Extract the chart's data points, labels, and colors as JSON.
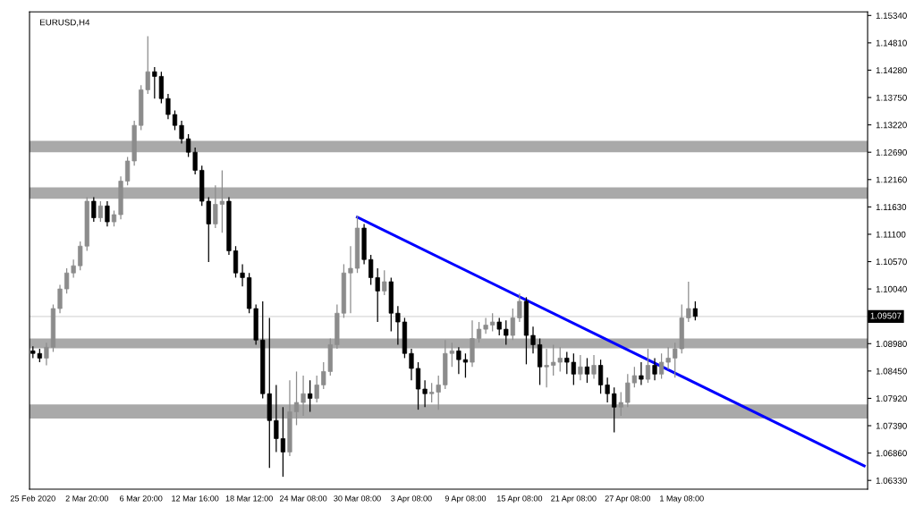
{
  "chart_data": {
    "type": "candlestick",
    "title": "EURUSD,H4",
    "categories": [
      "25 Feb 2020",
      null,
      null,
      null,
      null,
      null,
      null,
      null,
      "2 Mar 20:00",
      null,
      null,
      null,
      null,
      null,
      null,
      null,
      "6 Mar 20:00",
      null,
      null,
      null,
      null,
      null,
      null,
      null,
      "12 Mar 16:00",
      null,
      null,
      null,
      null,
      null,
      null,
      null,
      "18 Mar 12:00",
      null,
      null,
      null,
      null,
      null,
      null,
      null,
      "24 Mar 08:00",
      null,
      null,
      null,
      null,
      null,
      null,
      null,
      "30 Mar 08:00",
      null,
      null,
      null,
      null,
      null,
      null,
      null,
      "3 Apr 08:00",
      null,
      null,
      null,
      null,
      null,
      null,
      null,
      "9 Apr 08:00",
      null,
      null,
      null,
      null,
      null,
      null,
      null,
      "15 Apr 08:00",
      null,
      null,
      null,
      null,
      null,
      null,
      null,
      "21 Apr 08:00",
      null,
      null,
      null,
      null,
      null,
      null,
      null,
      "27 Apr 08:00",
      null,
      null,
      null,
      null,
      null,
      null,
      null,
      "1 May 08:00",
      null,
      null,
      null,
      null,
      null,
      null,
      null,
      null,
      null,
      null,
      null,
      null,
      null,
      null,
      null,
      null,
      null,
      null,
      null,
      null,
      null,
      null,
      null,
      null,
      null,
      null,
      null
    ],
    "ohlc": [
      [
        1.0884,
        1.0893,
        1.087,
        1.0879
      ],
      [
        1.0879,
        1.0888,
        1.0862,
        1.087
      ],
      [
        1.087,
        1.09,
        1.0856,
        1.0891
      ],
      [
        1.0891,
        1.0974,
        1.0882,
        1.0966
      ],
      [
        1.0966,
        1.1012,
        1.0957,
        1.1004
      ],
      [
        1.1004,
        1.1044,
        1.0995,
        1.1035
      ],
      [
        1.1035,
        1.1061,
        1.1026,
        1.1049
      ],
      [
        1.1049,
        1.1096,
        1.104,
        1.1087
      ],
      [
        1.1087,
        1.1182,
        1.1078,
        1.1174
      ],
      [
        1.1174,
        1.1182,
        1.1134,
        1.1142
      ],
      [
        1.1142,
        1.1174,
        1.1134,
        1.1165
      ],
      [
        1.1165,
        1.1174,
        1.1125,
        1.1134
      ],
      [
        1.1134,
        1.1156,
        1.1125,
        1.1148
      ],
      [
        1.1148,
        1.1222,
        1.1139,
        1.1213
      ],
      [
        1.1213,
        1.126,
        1.1205,
        1.1252
      ],
      [
        1.1252,
        1.133,
        1.1243,
        1.1321
      ],
      [
        1.1321,
        1.1399,
        1.1312,
        1.139
      ],
      [
        1.139,
        1.1494,
        1.1382,
        1.1425
      ],
      [
        1.1425,
        1.1434,
        1.1373,
        1.1416
      ],
      [
        1.1416,
        1.1425,
        1.1364,
        1.1373
      ],
      [
        1.1373,
        1.1382,
        1.1333,
        1.1342
      ],
      [
        1.1342,
        1.135,
        1.1312,
        1.1321
      ],
      [
        1.1321,
        1.133,
        1.1286,
        1.1295
      ],
      [
        1.1295,
        1.1304,
        1.126,
        1.1269
      ],
      [
        1.1269,
        1.1278,
        1.1226,
        1.1234
      ],
      [
        1.1234,
        1.1243,
        1.1165,
        1.1174
      ],
      [
        1.1174,
        1.1182,
        1.1056,
        1.113
      ],
      [
        1.113,
        1.1205,
        1.1122,
        1.1168
      ],
      [
        1.1168,
        1.1234,
        1.1113,
        1.1174
      ],
      [
        1.1174,
        1.1182,
        1.107,
        1.1078
      ],
      [
        1.1078,
        1.1087,
        1.1026,
        1.1035
      ],
      [
        1.1035,
        1.1052,
        1.1009,
        1.1026
      ],
      [
        1.1026,
        1.1035,
        1.0957,
        1.0966
      ],
      [
        1.0966,
        1.0974,
        1.0896,
        1.0905
      ],
      [
        1.0905,
        1.098,
        1.0792,
        1.0801
      ],
      [
        1.0801,
        1.0948,
        1.0657,
        1.0749
      ],
      [
        1.0749,
        1.0818,
        1.0688,
        1.0714
      ],
      [
        1.0714,
        1.0775,
        1.064,
        1.0688
      ],
      [
        1.0688,
        1.0827,
        1.068,
        1.0766
      ],
      [
        1.0766,
        1.0844,
        1.074,
        1.0784
      ],
      [
        1.0784,
        1.0836,
        1.0758,
        1.0801
      ],
      [
        1.0801,
        1.0827,
        1.0766,
        1.0792
      ],
      [
        1.0792,
        1.0836,
        1.0784,
        1.0818
      ],
      [
        1.0818,
        1.0862,
        1.081,
        1.0844
      ],
      [
        1.0844,
        1.0908,
        1.0836,
        1.0896
      ],
      [
        1.0896,
        1.0974,
        1.0888,
        1.0957
      ],
      [
        1.0957,
        1.1052,
        1.0948,
        1.1035
      ],
      [
        1.1035,
        1.1087,
        1.0957,
        1.1044
      ],
      [
        1.1044,
        1.1146,
        1.1035,
        1.1122
      ],
      [
        1.1122,
        1.113,
        1.1052,
        1.1061
      ],
      [
        1.1061,
        1.107,
        1.1012,
        1.1026
      ],
      [
        1.1026,
        1.1044,
        1.094,
        1.1
      ],
      [
        1.1,
        1.104,
        1.0992,
        1.1018
      ],
      [
        1.1018,
        1.1026,
        1.0922,
        1.0957
      ],
      [
        1.0957,
        1.0971,
        1.0896,
        1.094
      ],
      [
        1.094,
        1.0948,
        1.087,
        1.0879
      ],
      [
        1.0879,
        1.0888,
        1.0827,
        1.085
      ],
      [
        1.085,
        1.0862,
        1.077,
        1.081
      ],
      [
        1.081,
        1.0827,
        1.0775,
        1.0801
      ],
      [
        1.0801,
        1.0822,
        1.0784,
        1.0804
      ],
      [
        1.0804,
        1.0836,
        1.077,
        1.0818
      ],
      [
        1.0818,
        1.0905,
        1.081,
        1.0879
      ],
      [
        1.0879,
        1.09,
        1.0853,
        1.0884
      ],
      [
        1.0884,
        1.0891,
        1.0839,
        1.0867
      ],
      [
        1.0867,
        1.0879,
        1.0832,
        1.0862
      ],
      [
        1.0862,
        1.0943,
        1.0853,
        1.0908
      ],
      [
        1.0908,
        1.094,
        1.09,
        1.0926
      ],
      [
        1.0926,
        1.0948,
        1.0917,
        1.0934
      ],
      [
        1.0934,
        1.0957,
        1.0922,
        1.094
      ],
      [
        1.094,
        1.0948,
        1.0914,
        1.0926
      ],
      [
        1.0926,
        1.0943,
        1.0896,
        1.0914
      ],
      [
        1.0914,
        1.0966,
        1.0905,
        1.0948
      ],
      [
        1.0948,
        1.0995,
        1.094,
        1.098
      ],
      [
        1.098,
        1.0988,
        1.0858,
        1.0914
      ],
      [
        1.0914,
        1.0931,
        1.0879,
        1.0896
      ],
      [
        1.0896,
        1.0908,
        1.0818,
        1.0853
      ],
      [
        1.0853,
        1.0888,
        1.0813,
        1.0856
      ],
      [
        1.0856,
        1.0896,
        1.0836,
        1.0862
      ],
      [
        1.0862,
        1.0891,
        1.0844,
        1.087
      ],
      [
        1.087,
        1.0882,
        1.0839,
        1.0862
      ],
      [
        1.0862,
        1.0879,
        1.0818,
        1.0839
      ],
      [
        1.0839,
        1.0876,
        1.0827,
        1.0853
      ],
      [
        1.0853,
        1.087,
        1.0822,
        1.0839
      ],
      [
        1.0839,
        1.0876,
        1.083,
        1.0856
      ],
      [
        1.0856,
        1.0867,
        1.0801,
        1.0818
      ],
      [
        1.0818,
        1.0832,
        1.0784,
        1.0801
      ],
      [
        1.0801,
        1.0813,
        1.0726,
        1.0775
      ],
      [
        1.0775,
        1.0804,
        1.0758,
        1.0784
      ],
      [
        1.0784,
        1.0839,
        1.0775,
        1.0822
      ],
      [
        1.0822,
        1.0853,
        1.0813,
        1.0836
      ],
      [
        1.0836,
        1.0862,
        1.0818,
        1.0829
      ],
      [
        1.0829,
        1.0888,
        1.0822,
        1.0856
      ],
      [
        1.0856,
        1.087,
        1.0827,
        1.0839
      ],
      [
        1.0839,
        1.0879,
        1.083,
        1.0862
      ],
      [
        1.0862,
        1.0891,
        1.0848,
        1.087
      ],
      [
        1.087,
        1.09,
        1.0832,
        1.0888
      ],
      [
        1.0888,
        1.0974,
        1.0879,
        1.0948
      ],
      [
        1.0948,
        1.1018,
        1.094,
        1.0966
      ],
      [
        1.0966,
        1.098,
        1.0943,
        1.09507
      ],
      null,
      null,
      null,
      null,
      null,
      null,
      null,
      null,
      null,
      null,
      null,
      null,
      null,
      null,
      null,
      null,
      null,
      null,
      null,
      null,
      null,
      null,
      null,
      null,
      null
    ],
    "series": [
      {
        "type": "line",
        "color": "#0000ff",
        "values": [
          null,
          null,
          null,
          null,
          null,
          null,
          null,
          null,
          null,
          null,
          null,
          null,
          null,
          null,
          null,
          null,
          null,
          null,
          null,
          null,
          null,
          null,
          null,
          null,
          null,
          null,
          null,
          null,
          null,
          null,
          null,
          null,
          null,
          null,
          null,
          null,
          null,
          null,
          null,
          null,
          null,
          null,
          null,
          null,
          null,
          null,
          null,
          null,
          1.1143,
          null,
          null,
          null,
          null,
          null,
          null,
          null,
          null,
          null,
          null,
          null,
          null,
          null,
          null,
          null,
          null,
          null,
          null,
          null,
          null,
          null,
          null,
          null,
          null,
          null,
          null,
          null,
          null,
          null,
          null,
          null,
          null,
          null,
          null,
          null,
          null,
          null,
          null,
          null,
          null,
          null,
          null,
          null,
          null,
          null,
          null,
          null,
          null,
          null,
          null,
          null,
          null,
          null,
          null,
          null,
          null,
          null,
          null,
          null,
          null,
          null,
          null,
          null,
          null,
          null,
          null,
          null,
          null,
          null,
          null,
          null,
          null,
          null,
          null,
          1.0661
        ]
      }
    ],
    "bands": [
      {
        "axis": "y",
        "from": 1.1269,
        "to": 1.1291,
        "color": "#a9a9a9"
      },
      {
        "axis": "y",
        "from": 1.1179,
        "to": 1.1201,
        "color": "#a9a9a9"
      },
      {
        "axis": "y",
        "from": 1.0889,
        "to": 1.0908,
        "color": "#a9a9a9"
      },
      {
        "axis": "y",
        "from": 1.0753,
        "to": 1.078,
        "color": "#a9a9a9"
      }
    ],
    "ref_lines": [
      {
        "axis": "y",
        "value": 1.09507,
        "label": "1.09507",
        "color": "#d8d8d8"
      }
    ],
    "ylim": [
      1.0616,
      1.1541
    ],
    "yticks": [
      {
        "value": 1.0633,
        "label": "1.06330"
      },
      {
        "value": 1.0686,
        "label": "1.06860"
      },
      {
        "value": 1.0739,
        "label": "1.07390"
      },
      {
        "value": 1.0792,
        "label": "1.07920"
      },
      {
        "value": 1.0845,
        "label": "1.08450"
      },
      {
        "value": 1.0898,
        "label": "1.08980"
      },
      {
        "value": 1.1004,
        "label": "1.10040"
      },
      {
        "value": 1.1057,
        "label": "1.10570"
      },
      {
        "value": 1.111,
        "label": "1.11100"
      },
      {
        "value": 1.1163,
        "label": "1.11630"
      },
      {
        "value": 1.1216,
        "label": "1.12160"
      },
      {
        "value": 1.1269,
        "label": "1.12690"
      },
      {
        "value": 1.1322,
        "label": "1.13220"
      },
      {
        "value": 1.1375,
        "label": "1.13750"
      },
      {
        "value": 1.1428,
        "label": "1.14280"
      },
      {
        "value": 1.1481,
        "label": "1.14810"
      },
      {
        "value": 1.1534,
        "label": "1.15340"
      }
    ],
    "grid": false,
    "legend": false
  }
}
